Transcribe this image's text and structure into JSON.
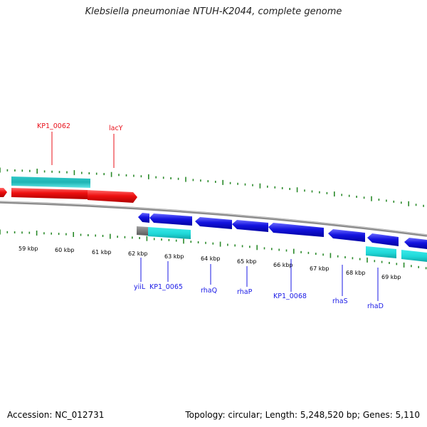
{
  "title": "Klebsiella pneumoniae NTUH-K2044, complete genome",
  "footer": {
    "accession": "Accession: NC_012731",
    "topology": "Topology: circular; Length: 5,248,520 bp; Genes: 5,110"
  },
  "colors": {
    "forward_gene": "#e8101a",
    "reverse_gene": "#1a1ae6",
    "feature_cyan": "#24e6e6",
    "feature_gray": "#7a7a7a",
    "tick_green": "#2a8a2a",
    "backbone": "#8c8c8c"
  },
  "scale_labels": [
    "59 kbp",
    "60 kbp",
    "61 kbp",
    "62 kbp",
    "63 kbp",
    "64 kbp",
    "65 kbp",
    "66 kbp",
    "67 kbp",
    "68 kbp",
    "69 kbp"
  ],
  "gene_labels_top": [
    "KP1_0062",
    "lacY"
  ],
  "gene_labels_bottom": [
    "yiiL",
    "KP1_0065",
    "rhaQ",
    "rhaP",
    "KP1_0068",
    "rhaS",
    "rhaD"
  ]
}
